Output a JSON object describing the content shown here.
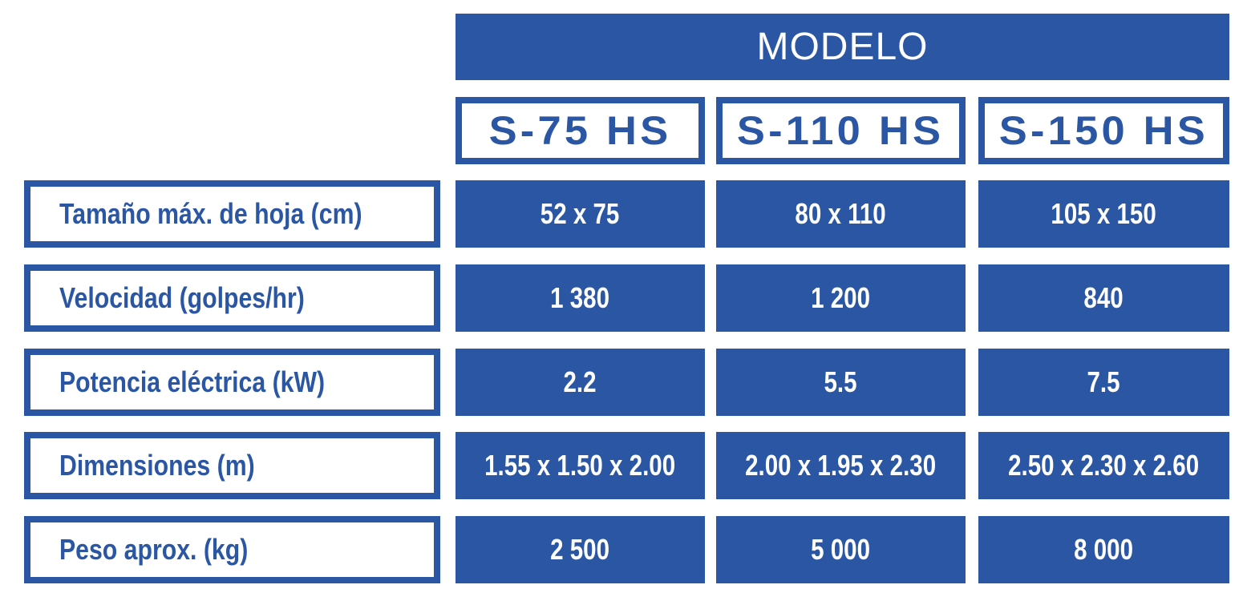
{
  "header": {
    "title": "MODELO"
  },
  "models": [
    "S-75 HS",
    "S-110 HS",
    "S-150 HS"
  ],
  "rows": [
    {
      "label": "Tamaño máx. de hoja (cm)",
      "values": [
        "52 x 75",
        "80 x 110",
        "105 x 150"
      ]
    },
    {
      "label": "Velocidad (golpes/hr)",
      "values": [
        "1 380",
        "1 200",
        "840"
      ]
    },
    {
      "label": "Potencia eléctrica (kW)",
      "values": [
        "2.2",
        "5.5",
        "7.5"
      ]
    },
    {
      "label": "Dimensiones (m)",
      "values": [
        "1.55 x 1.50 x 2.00",
        "2.00 x 1.95 x 2.30",
        "2.50 x 2.30 x 2.60"
      ]
    },
    {
      "label": "Peso aprox. (kg)",
      "values": [
        "2 500",
        "5 000",
        "8 000"
      ]
    }
  ]
}
